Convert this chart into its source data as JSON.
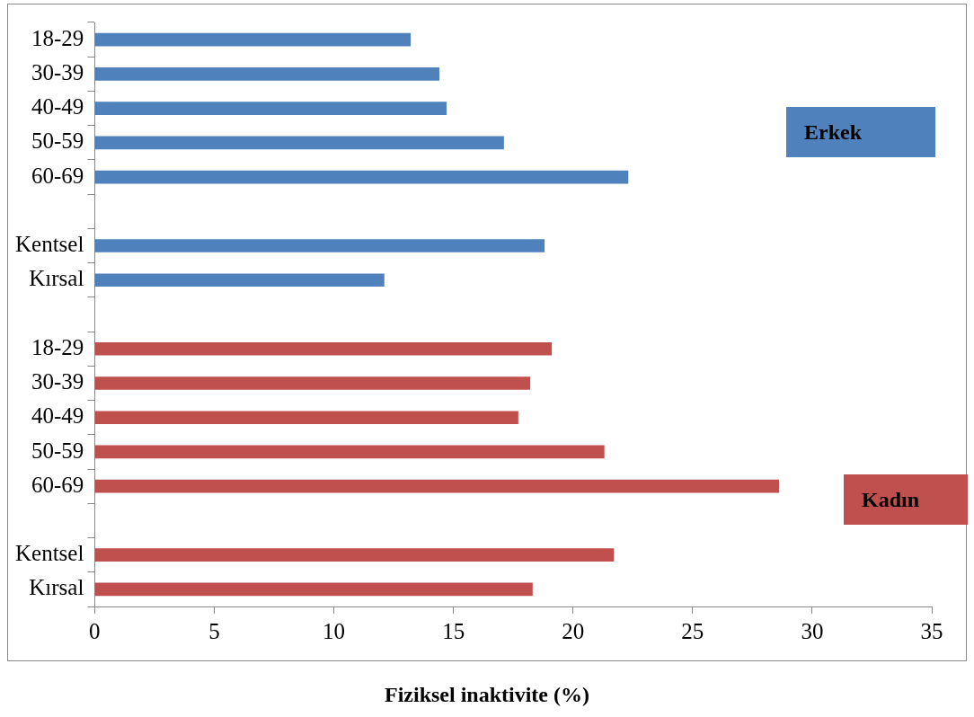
{
  "chart_data": {
    "type": "bar",
    "orientation": "horizontal",
    "xlabel": "Fiziksel inaktivite (%)",
    "categories": [
      "18-29",
      "30-39",
      "40-49",
      "50-59",
      "60-69",
      null,
      "Kentsel",
      "Kırsal",
      null,
      "18-29",
      "30-39",
      "40-49",
      "50-59",
      "60-69",
      null,
      "Kentsel",
      "Kırsal"
    ],
    "series": [
      {
        "name": "Erkek",
        "color": "#4f81bd",
        "values": [
          13.2,
          14.4,
          14.7,
          17.1,
          22.3,
          null,
          18.8,
          12.1,
          null,
          null,
          null,
          null,
          null,
          null,
          null,
          null,
          null
        ]
      },
      {
        "name": "Kadın",
        "color": "#c0504d",
        "values": [
          null,
          null,
          null,
          null,
          null,
          null,
          null,
          null,
          null,
          19.1,
          18.2,
          17.7,
          21.3,
          28.6,
          null,
          21.7,
          18.3
        ]
      }
    ],
    "xlim": [
      0,
      35
    ],
    "xticks": [
      0,
      5,
      10,
      15,
      20,
      25,
      30,
      35
    ],
    "grid": false,
    "legend": "right"
  }
}
